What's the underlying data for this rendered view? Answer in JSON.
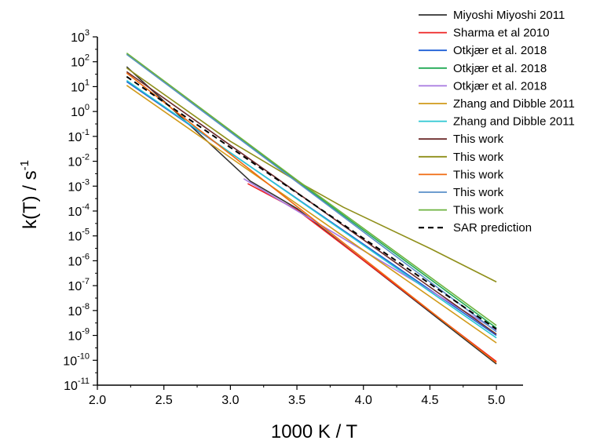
{
  "chart_data": {
    "type": "line",
    "xlabel": "1000 K / T",
    "ylabel_base": "k(T) / s",
    "ylabel_exp": "-1",
    "y_scale": "log",
    "xlim": [
      2.0,
      5.2
    ],
    "ylim_exponents": [
      -11,
      3
    ],
    "x_ticks": [
      "2.0",
      "2.5",
      "3.0",
      "3.5",
      "4.0",
      "4.5",
      "5.0"
    ],
    "y_ticks": [
      {
        "base": "10",
        "exp": "3"
      },
      {
        "base": "10",
        "exp": "2"
      },
      {
        "base": "10",
        "exp": "1"
      },
      {
        "base": "10",
        "exp": "0"
      },
      {
        "base": "10",
        "exp": "-1"
      },
      {
        "base": "10",
        "exp": "-2"
      },
      {
        "base": "10",
        "exp": "-3"
      },
      {
        "base": "10",
        "exp": "-4"
      },
      {
        "base": "10",
        "exp": "-5"
      },
      {
        "base": "10",
        "exp": "-6"
      },
      {
        "base": "10",
        "exp": "-7"
      },
      {
        "base": "10",
        "exp": "-8"
      },
      {
        "base": "10",
        "exp": "-9"
      },
      {
        "base": "10",
        "exp": "-10"
      },
      {
        "base": "10",
        "exp": "-11"
      }
    ],
    "grid": false,
    "legend_position": "top-right",
    "series": [
      {
        "name": "Miyoshi Miyoshi 2011",
        "color": "#333333",
        "dash": false,
        "points": [
          [
            2.22,
            1.8
          ],
          [
            3.15,
            -2.8
          ],
          [
            3.5,
            -3.9
          ],
          [
            5.0,
            -10.15
          ]
        ]
      },
      {
        "name": "Sharma et al 2010",
        "color": "#ee2222",
        "dash": false,
        "points": [
          [
            3.13,
            -2.9
          ],
          [
            3.5,
            -3.95
          ],
          [
            5.0,
            -10.05
          ]
        ]
      },
      {
        "name": "Otkjær et al. 2018",
        "color": "#1f5fd6",
        "dash": false,
        "points": [
          [
            2.22,
            1.2
          ],
          [
            5.0,
            -9.0
          ]
        ]
      },
      {
        "name": "Otkjær et al. 2018",
        "color": "#22aa55",
        "dash": false,
        "points": [
          [
            2.22,
            2.3
          ],
          [
            3.5,
            -2.8
          ],
          [
            5.0,
            -8.7
          ]
        ]
      },
      {
        "name": "Otkjær et al. 2018",
        "color": "#a778e0",
        "dash": false,
        "points": [
          [
            3.1,
            -2.7
          ],
          [
            5.0,
            -8.8
          ]
        ]
      },
      {
        "name": "Zhang and Dibble 2011",
        "color": "#d19a1a",
        "dash": false,
        "points": [
          [
            2.22,
            1.05
          ],
          [
            5.0,
            -9.3
          ]
        ]
      },
      {
        "name": "Zhang and Dibble 2011",
        "color": "#2cc7d3",
        "dash": false,
        "points": [
          [
            2.22,
            1.25
          ],
          [
            5.0,
            -9.1
          ]
        ]
      },
      {
        "name": "This work",
        "color": "#6b2a2a",
        "dash": false,
        "points": [
          [
            2.22,
            1.6
          ],
          [
            5.0,
            -8.95
          ]
        ]
      },
      {
        "name": "This work",
        "color": "#8f8f1a",
        "dash": false,
        "points": [
          [
            2.22,
            1.75
          ],
          [
            3.0,
            -1.2
          ],
          [
            3.5,
            -2.8
          ],
          [
            3.85,
            -3.85
          ],
          [
            4.5,
            -5.5
          ],
          [
            5.0,
            -6.85
          ]
        ]
      },
      {
        "name": "This work",
        "color": "#f06a10",
        "dash": false,
        "points": [
          [
            2.22,
            1.55
          ],
          [
            5.0,
            -10.1
          ]
        ]
      },
      {
        "name": "This work",
        "color": "#5a8fc8",
        "dash": false,
        "points": [
          [
            2.22,
            2.3
          ],
          [
            5.0,
            -8.85
          ]
        ]
      },
      {
        "name": "This work",
        "color": "#6db33f",
        "dash": false,
        "points": [
          [
            2.22,
            2.35
          ],
          [
            3.5,
            -2.75
          ],
          [
            3.95,
            -4.5
          ],
          [
            5.0,
            -8.6
          ]
        ]
      },
      {
        "name": "SAR prediction",
        "color": "#000000",
        "dash": true,
        "points": [
          [
            2.22,
            1.4
          ],
          [
            5.0,
            -8.75
          ]
        ]
      }
    ]
  }
}
